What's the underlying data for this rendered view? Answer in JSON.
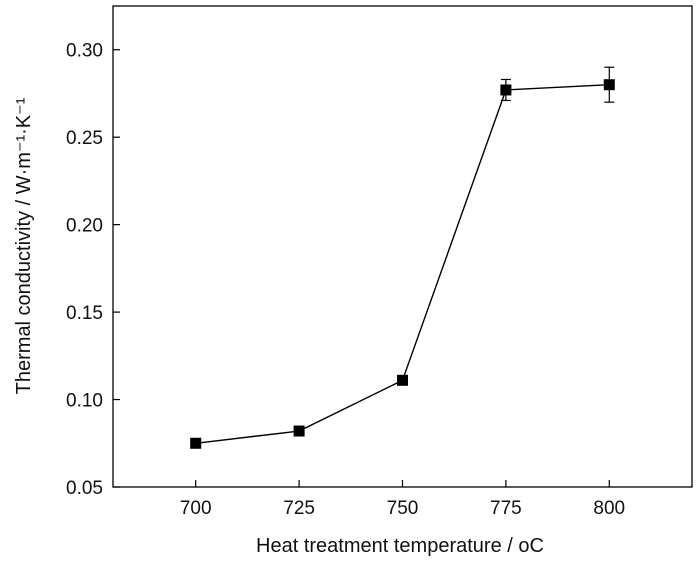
{
  "chart_data": {
    "type": "line",
    "title": "",
    "xlabel": "Heat treatment temperature / ",
    "xlabel_unit": "oC",
    "ylabel": "Thermal conductivity / W·m⁻¹·K⁻¹",
    "x": [
      700,
      725,
      750,
      775,
      800
    ],
    "series": [
      {
        "values": [
          0.075,
          0.082,
          0.111,
          0.277,
          0.28
        ],
        "errors": [
          0.0,
          0.0,
          0.0,
          0.006,
          0.01
        ],
        "marker": "square",
        "color": "#000000"
      }
    ],
    "x_ticks": [
      "700",
      "725",
      "750",
      "775",
      "800"
    ],
    "y_ticks": [
      "0.05",
      "0.10",
      "0.15",
      "0.20",
      "0.25",
      "0.30"
    ],
    "xlim": [
      680,
      820
    ],
    "ylim": [
      0.05,
      0.325
    ],
    "grid": false,
    "legend": "none"
  }
}
